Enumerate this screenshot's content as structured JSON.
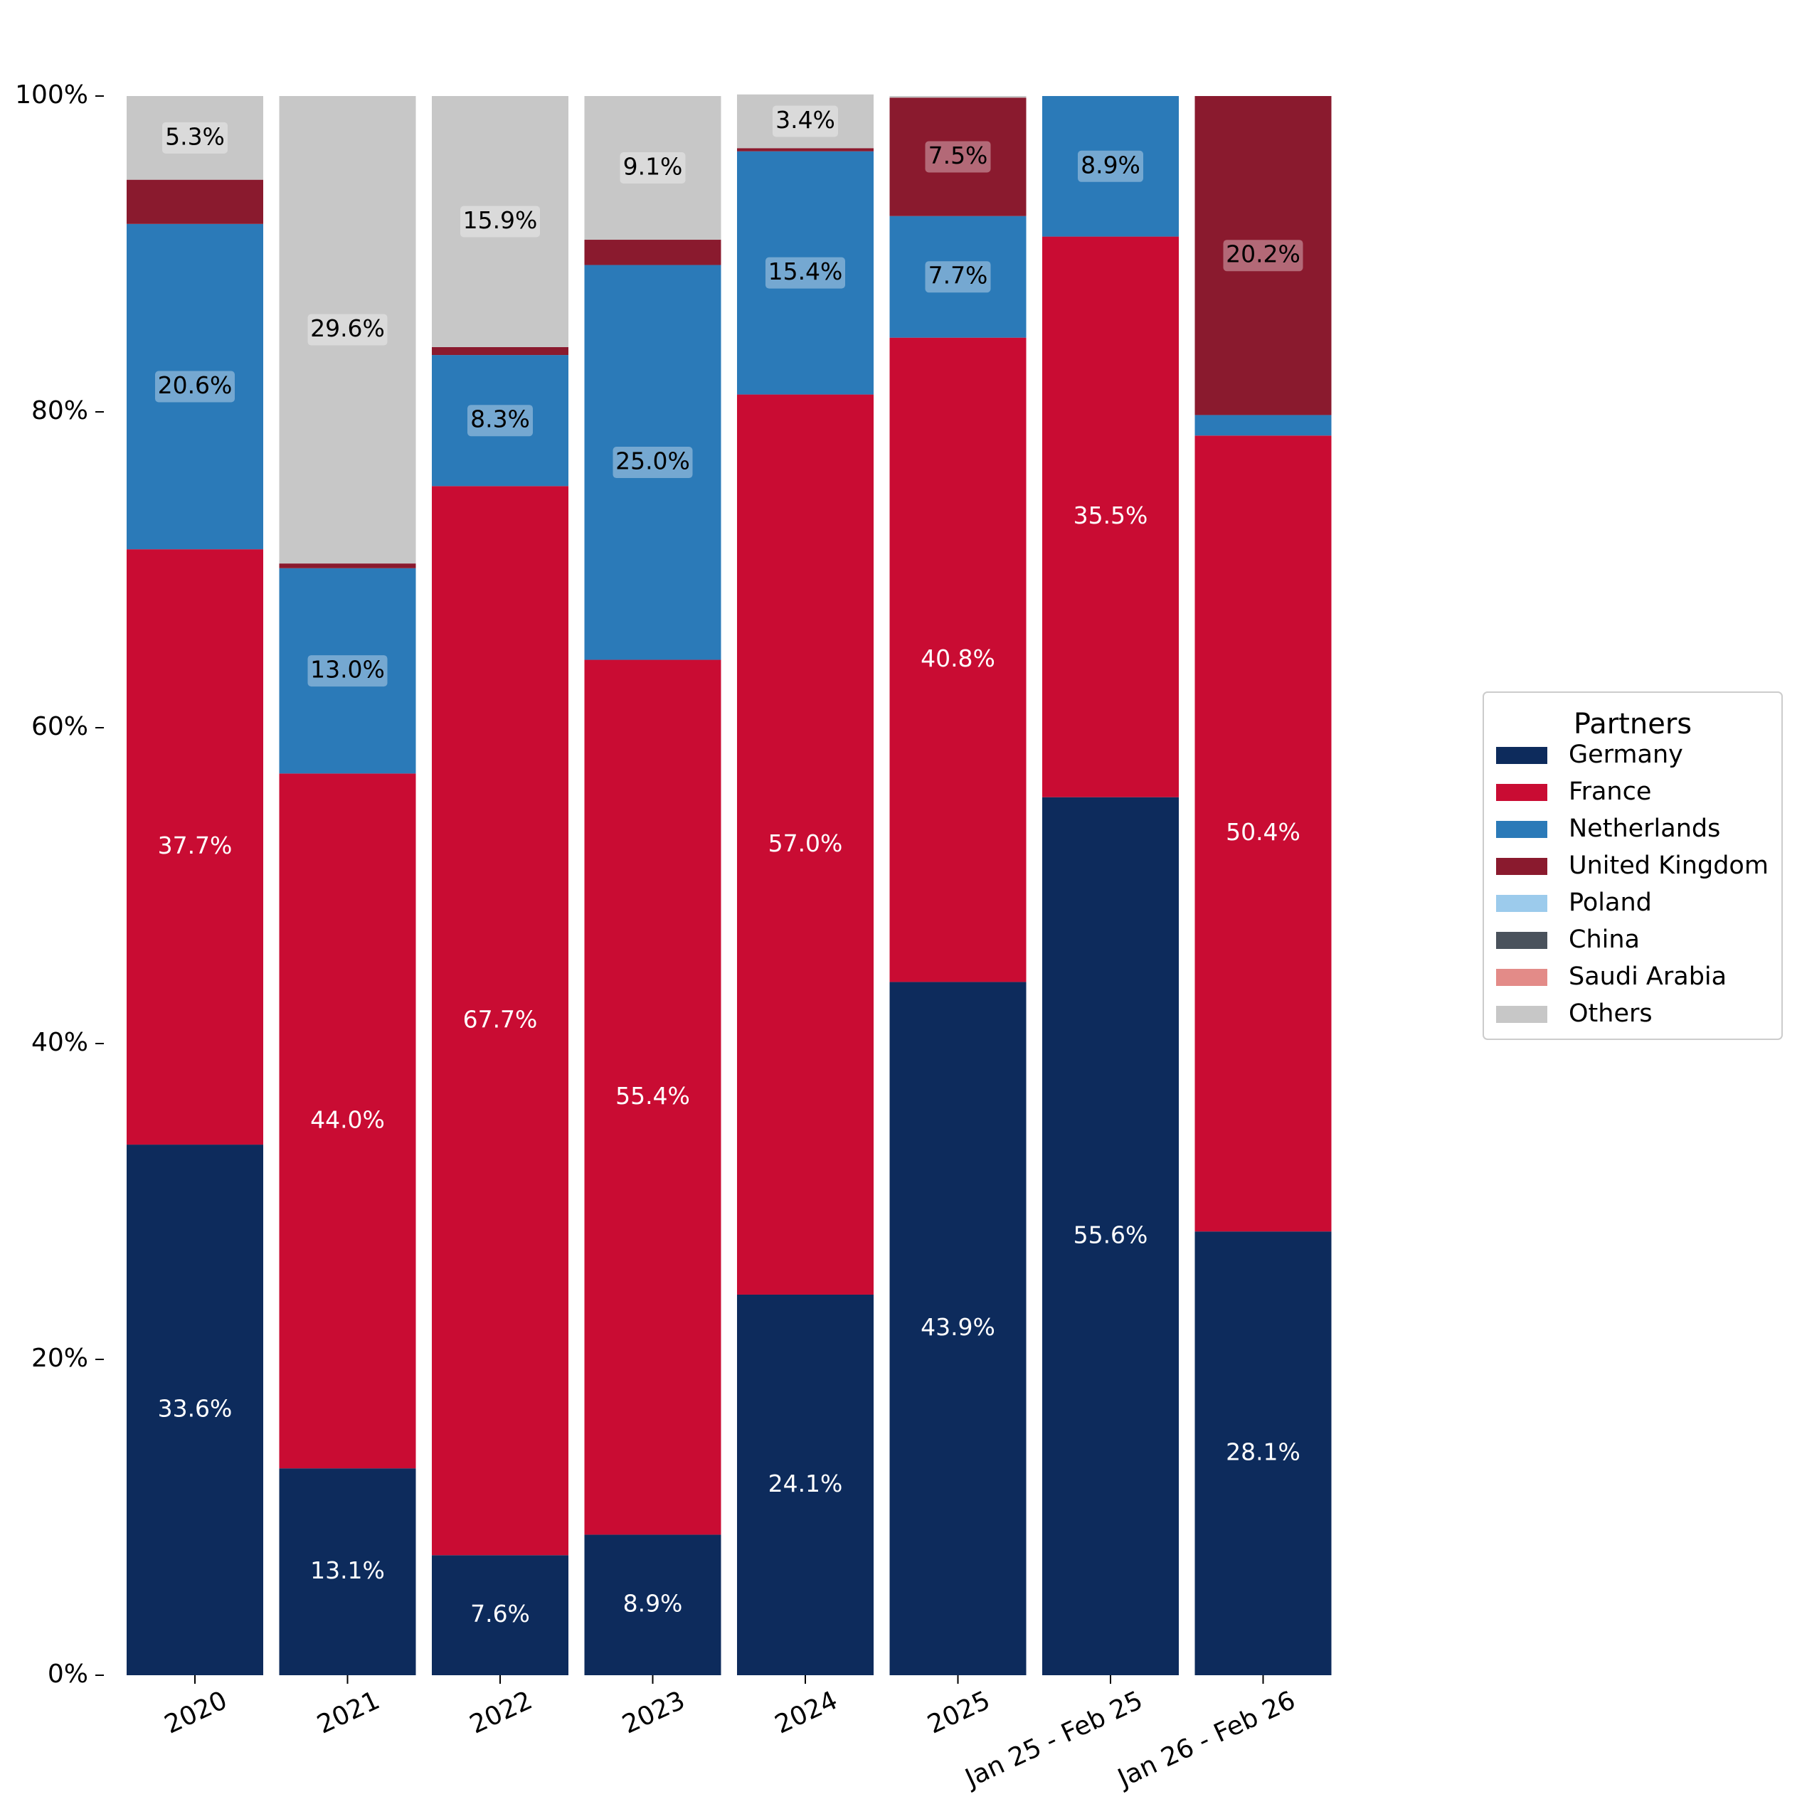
{
  "chart_data": {
    "type": "bar",
    "stacked": true,
    "normalized": true,
    "categories": [
      "2020",
      "2021",
      "2022",
      "2023",
      "2024",
      "2025",
      "Jan 25 - Feb 25",
      "Jan 26 - Feb 26"
    ],
    "y_ticks": [
      "0%",
      "20%",
      "40%",
      "60%",
      "80%",
      "100%"
    ],
    "ylim": [
      0,
      100
    ],
    "legend": {
      "title": "Partners",
      "placement": "center-right"
    },
    "series": [
      {
        "name": "Germany",
        "color": "#0d2b5c",
        "values": [
          33.6,
          13.1,
          7.6,
          8.9,
          24.1,
          43.9,
          55.6,
          28.1
        ]
      },
      {
        "name": "France",
        "color": "#c90c33",
        "values": [
          37.7,
          44.0,
          67.7,
          55.4,
          57.0,
          40.8,
          35.5,
          50.4
        ]
      },
      {
        "name": "Netherlands",
        "color": "#2b7ab8",
        "values": [
          20.6,
          13.0,
          8.3,
          25.0,
          15.4,
          7.7,
          8.9,
          1.3
        ]
      },
      {
        "name": "United Kingdom",
        "color": "#8a1a2e",
        "values": [
          2.8,
          0.3,
          0.5,
          1.6,
          0.2,
          7.5,
          0.0,
          20.2
        ]
      },
      {
        "name": "Poland",
        "color": "#9ccbec",
        "values": [
          0,
          0,
          0,
          0,
          0,
          0,
          0,
          0
        ]
      },
      {
        "name": "China",
        "color": "#4a525c",
        "values": [
          0,
          0,
          0,
          0,
          0,
          0,
          0,
          0
        ]
      },
      {
        "name": "Saudi Arabia",
        "color": "#e38b88",
        "values": [
          0,
          0,
          0,
          0,
          0,
          0,
          0,
          0
        ]
      },
      {
        "name": "Others",
        "color": "#c7c7c7",
        "values": [
          5.3,
          29.6,
          15.9,
          9.1,
          3.4,
          0.1,
          0.0,
          0.0
        ]
      }
    ],
    "data_labels": [
      [
        "33.6%",
        "37.7%",
        "20.6%",
        null,
        null,
        null,
        null,
        "5.3%"
      ],
      [
        "13.1%",
        "44.0%",
        "13.0%",
        null,
        null,
        null,
        null,
        "29.6%"
      ],
      [
        "7.6%",
        "67.7%",
        "8.3%",
        null,
        null,
        null,
        null,
        "15.9%"
      ],
      [
        "8.9%",
        "55.4%",
        "25.0%",
        null,
        null,
        null,
        null,
        "9.1%"
      ],
      [
        "24.1%",
        "57.0%",
        "15.4%",
        null,
        null,
        null,
        null,
        "3.4%"
      ],
      [
        "43.9%",
        "40.8%",
        "7.7%",
        "7.5%",
        null,
        null,
        null,
        null
      ],
      [
        "55.6%",
        "35.5%",
        "8.9%",
        null,
        null,
        null,
        null,
        null
      ],
      [
        "28.1%",
        "50.4%",
        null,
        "20.2%",
        null,
        null,
        null,
        null
      ]
    ]
  }
}
